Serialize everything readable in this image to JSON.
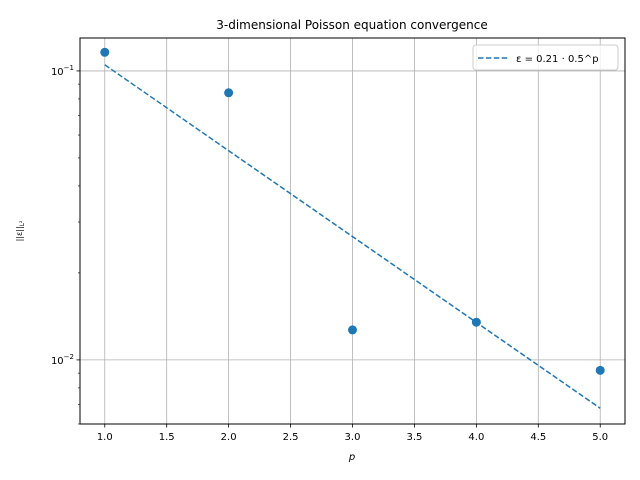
{
  "chart_data": {
    "type": "scatter",
    "title": "3-dimensional Poisson equation convergence",
    "xlabel": "p",
    "ylabel": "||ε||L²",
    "xlim": [
      0.8,
      5.2
    ],
    "ylim": [
      0.006,
      0.13
    ],
    "y_scale": "log",
    "grid": true,
    "legend_position": "top-right",
    "x_ticks": [
      "1.0",
      "1.5",
      "2.0",
      "2.5",
      "3.0",
      "3.5",
      "4.0",
      "4.5",
      "5.0"
    ],
    "x_tick_values": [
      1.0,
      1.5,
      2.0,
      2.5,
      3.0,
      3.5,
      4.0,
      4.5,
      5.0
    ],
    "y_tick_values": [
      0.01,
      0.1
    ],
    "points": {
      "x": [
        1,
        2,
        3,
        4,
        5
      ],
      "y": [
        0.116,
        0.084,
        0.0127,
        0.0135,
        0.0092
      ]
    },
    "fit": {
      "label": "ε = 0.21 · 0.5^p",
      "x": [
        1,
        5
      ],
      "y": [
        0.105,
        0.0068
      ],
      "style": "dashed"
    },
    "colors": {
      "series": "#1f77b4",
      "grid": "#b0b0b0"
    }
  }
}
